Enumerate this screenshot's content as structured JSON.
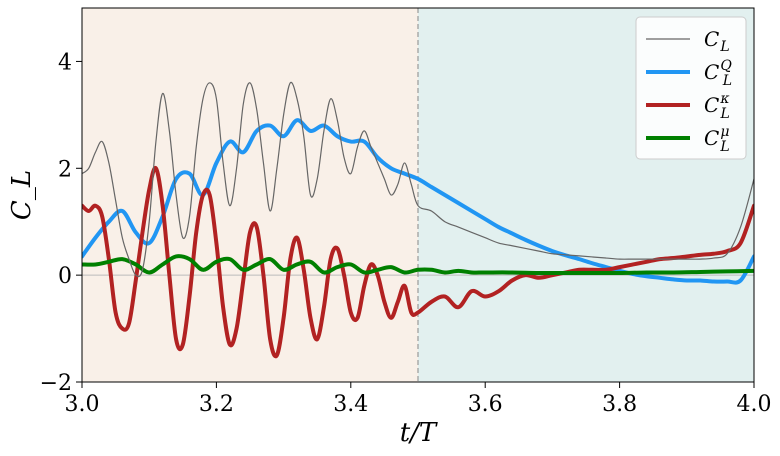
{
  "chart_data": {
    "type": "line",
    "xlabel": "t/T",
    "ylabel": "C_L",
    "xlim": [
      3.0,
      4.0
    ],
    "ylim": [
      -2,
      5
    ],
    "xticks": [
      "3.0",
      "3.2",
      "3.4",
      "3.6",
      "3.8",
      "4.0"
    ],
    "yticks": [
      "−2",
      "0",
      "2",
      "4"
    ],
    "grid": false,
    "legend_position": "top-right",
    "shaded_regions": [
      {
        "x": [
          3.0,
          3.5
        ],
        "color": "#f9f0e8"
      },
      {
        "x": [
          3.5,
          4.0
        ],
        "color": "#e2f0ef"
      }
    ],
    "vertical_line": {
      "x": 3.5,
      "style": "dashed",
      "color": "#999999"
    },
    "series": [
      {
        "name": "C_L",
        "legend_main": "C",
        "legend_sub": "L",
        "legend_sup": "",
        "color": "#666666",
        "width": 1.2,
        "x": [
          3.0,
          3.01,
          3.02,
          3.03,
          3.04,
          3.05,
          3.06,
          3.07,
          3.08,
          3.09,
          3.1,
          3.11,
          3.12,
          3.13,
          3.14,
          3.15,
          3.16,
          3.17,
          3.18,
          3.19,
          3.2,
          3.21,
          3.22,
          3.23,
          3.24,
          3.25,
          3.26,
          3.27,
          3.28,
          3.29,
          3.3,
          3.31,
          3.32,
          3.33,
          3.34,
          3.35,
          3.36,
          3.37,
          3.38,
          3.39,
          3.4,
          3.41,
          3.42,
          3.43,
          3.44,
          3.45,
          3.46,
          3.47,
          3.48,
          3.49,
          3.5,
          3.52,
          3.54,
          3.56,
          3.58,
          3.6,
          3.62,
          3.64,
          3.66,
          3.68,
          3.7,
          3.72,
          3.74,
          3.76,
          3.78,
          3.8,
          3.82,
          3.84,
          3.86,
          3.88,
          3.9,
          3.92,
          3.94,
          3.96,
          3.98,
          4.0
        ],
        "y": [
          1.9,
          2.0,
          2.3,
          2.5,
          2.1,
          1.4,
          0.7,
          0.3,
          0.0,
          0.1,
          1.0,
          2.5,
          3.4,
          2.7,
          1.5,
          0.7,
          1.1,
          2.4,
          3.3,
          3.6,
          3.3,
          2.1,
          1.3,
          2.0,
          3.2,
          3.6,
          3.1,
          2.1,
          1.2,
          2.0,
          3.0,
          3.6,
          3.3,
          2.6,
          1.5,
          1.8,
          2.7,
          3.3,
          2.9,
          2.2,
          1.9,
          2.4,
          2.7,
          2.4,
          2.1,
          1.8,
          1.5,
          1.7,
          2.1,
          1.7,
          1.3,
          1.2,
          1.0,
          0.9,
          0.8,
          0.7,
          0.6,
          0.55,
          0.5,
          0.45,
          0.4,
          0.38,
          0.36,
          0.34,
          0.32,
          0.3,
          0.3,
          0.3,
          0.3,
          0.3,
          0.3,
          0.3,
          0.32,
          0.4,
          0.9,
          1.8
        ]
      },
      {
        "name": "C_L^Q",
        "legend_main": "C",
        "legend_sub": "L",
        "legend_sup": "Q",
        "color": "#2196f3",
        "width": 4,
        "x": [
          3.0,
          3.02,
          3.04,
          3.06,
          3.08,
          3.1,
          3.12,
          3.14,
          3.16,
          3.18,
          3.2,
          3.22,
          3.24,
          3.26,
          3.28,
          3.3,
          3.32,
          3.34,
          3.36,
          3.38,
          3.4,
          3.42,
          3.44,
          3.46,
          3.48,
          3.5,
          3.52,
          3.54,
          3.56,
          3.58,
          3.6,
          3.62,
          3.64,
          3.66,
          3.68,
          3.7,
          3.72,
          3.74,
          3.76,
          3.78,
          3.8,
          3.82,
          3.84,
          3.86,
          3.88,
          3.9,
          3.92,
          3.94,
          3.96,
          3.98,
          4.0
        ],
        "y": [
          0.35,
          0.7,
          1.0,
          1.2,
          0.8,
          0.6,
          1.1,
          1.8,
          1.9,
          1.5,
          2.1,
          2.5,
          2.3,
          2.7,
          2.8,
          2.6,
          2.9,
          2.7,
          2.8,
          2.6,
          2.5,
          2.5,
          2.2,
          2.0,
          1.9,
          1.8,
          1.65,
          1.5,
          1.35,
          1.2,
          1.05,
          0.9,
          0.78,
          0.66,
          0.55,
          0.45,
          0.37,
          0.3,
          0.22,
          0.15,
          0.08,
          0.02,
          -0.02,
          -0.05,
          -0.08,
          -0.1,
          -0.1,
          -0.12,
          -0.12,
          -0.1,
          0.35
        ]
      },
      {
        "name": "C_L^κ",
        "legend_main": "C",
        "legend_sub": "L",
        "legend_sup": "κ",
        "color": "#b22222",
        "width": 4,
        "x": [
          3.0,
          3.01,
          3.02,
          3.03,
          3.04,
          3.05,
          3.06,
          3.07,
          3.08,
          3.09,
          3.1,
          3.11,
          3.12,
          3.13,
          3.14,
          3.15,
          3.16,
          3.17,
          3.18,
          3.19,
          3.2,
          3.21,
          3.22,
          3.23,
          3.24,
          3.25,
          3.26,
          3.27,
          3.28,
          3.29,
          3.3,
          3.31,
          3.32,
          3.33,
          3.34,
          3.35,
          3.36,
          3.37,
          3.38,
          3.39,
          3.4,
          3.41,
          3.42,
          3.43,
          3.44,
          3.45,
          3.46,
          3.47,
          3.48,
          3.49,
          3.5,
          3.52,
          3.54,
          3.56,
          3.58,
          3.6,
          3.62,
          3.64,
          3.66,
          3.68,
          3.7,
          3.72,
          3.74,
          3.76,
          3.78,
          3.8,
          3.82,
          3.84,
          3.86,
          3.88,
          3.9,
          3.92,
          3.94,
          3.96,
          3.98,
          4.0
        ],
        "y": [
          1.3,
          1.2,
          1.3,
          1.1,
          0.3,
          -0.7,
          -1.0,
          -0.9,
          -0.1,
          0.8,
          1.6,
          2.0,
          1.3,
          0.0,
          -1.2,
          -1.3,
          -0.4,
          0.8,
          1.5,
          1.5,
          0.6,
          -0.6,
          -1.3,
          -1.0,
          -0.1,
          0.8,
          0.9,
          0.0,
          -1.2,
          -1.5,
          -0.8,
          0.3,
          0.7,
          0.1,
          -0.8,
          -1.2,
          -0.6,
          0.3,
          0.5,
          0.0,
          -0.7,
          -0.8,
          -0.2,
          0.2,
          0.0,
          -0.5,
          -0.8,
          -0.5,
          -0.2,
          -0.7,
          -0.7,
          -0.5,
          -0.4,
          -0.6,
          -0.3,
          -0.4,
          -0.3,
          -0.1,
          0.0,
          -0.05,
          0.0,
          0.05,
          0.1,
          0.1,
          0.1,
          0.15,
          0.2,
          0.25,
          0.3,
          0.32,
          0.35,
          0.38,
          0.4,
          0.45,
          0.6,
          1.3
        ]
      },
      {
        "name": "C_L^μ",
        "legend_main": "C",
        "legend_sub": "L",
        "legend_sup": "μ",
        "color": "#008000",
        "width": 4,
        "x": [
          3.0,
          3.02,
          3.04,
          3.06,
          3.08,
          3.1,
          3.12,
          3.14,
          3.16,
          3.18,
          3.2,
          3.22,
          3.24,
          3.26,
          3.28,
          3.3,
          3.32,
          3.34,
          3.36,
          3.38,
          3.4,
          3.42,
          3.44,
          3.46,
          3.48,
          3.5,
          3.52,
          3.54,
          3.56,
          3.58,
          3.6,
          3.64,
          3.68,
          3.72,
          3.76,
          3.8,
          3.84,
          3.88,
          3.92,
          3.96,
          4.0
        ],
        "y": [
          0.2,
          0.2,
          0.25,
          0.3,
          0.2,
          0.05,
          0.2,
          0.35,
          0.3,
          0.1,
          0.25,
          0.3,
          0.1,
          0.2,
          0.3,
          0.1,
          0.2,
          0.25,
          0.05,
          0.15,
          0.2,
          0.05,
          0.1,
          0.15,
          0.05,
          0.1,
          0.1,
          0.05,
          0.08,
          0.05,
          0.05,
          0.05,
          0.04,
          0.04,
          0.04,
          0.04,
          0.05,
          0.05,
          0.06,
          0.07,
          0.08
        ]
      }
    ]
  }
}
